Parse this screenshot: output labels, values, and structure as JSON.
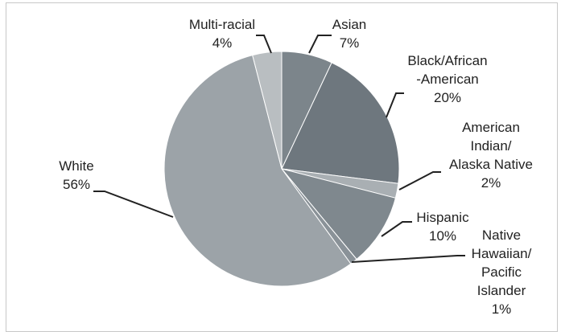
{
  "chart_data": {
    "type": "pie",
    "title": "",
    "slices": [
      {
        "lines": [
          "Asian",
          "7%"
        ],
        "value": 7,
        "color": "#7c858b"
      },
      {
        "lines": [
          "Black/African",
          "-American",
          "20%"
        ],
        "value": 20,
        "color": "#6e777e"
      },
      {
        "lines": [
          "American",
          "Indian/",
          "Alaska Native",
          "2%"
        ],
        "value": 2,
        "color": "#a9afb3"
      },
      {
        "lines": [
          "Hispanic",
          "10%"
        ],
        "value": 10,
        "color": "#7f888e"
      },
      {
        "lines": [
          "Native",
          "Hawaiian/",
          "Pacific",
          "Islander",
          "1%"
        ],
        "value": 1,
        "color": "#8a9298"
      },
      {
        "lines": [
          "White",
          "56%"
        ],
        "value": 56,
        "color": "#9ca3a8"
      },
      {
        "lines": [
          "Multi-racial",
          "4%"
        ],
        "value": 4,
        "color": "#b9bec1"
      }
    ],
    "start_angle_deg": 0,
    "direction": "clockwise",
    "legend": "none"
  }
}
